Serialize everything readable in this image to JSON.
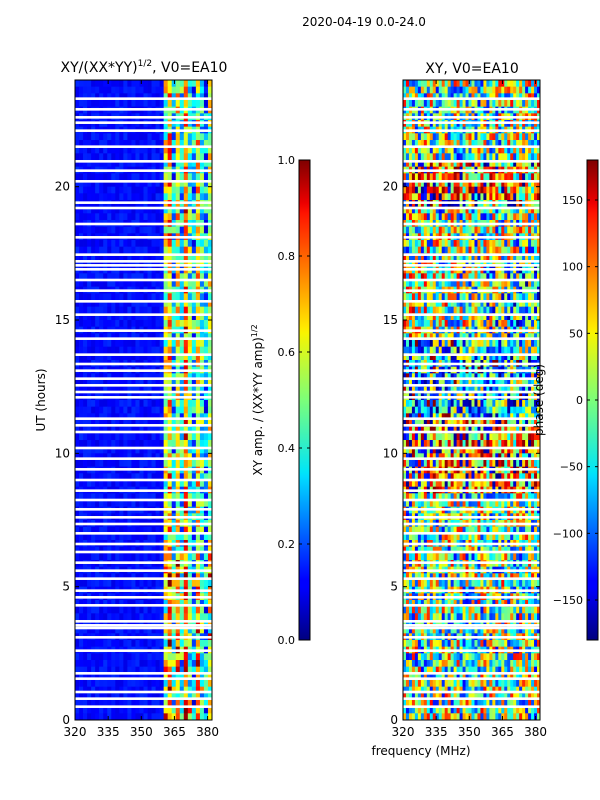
{
  "suptitle": "2020-04-19 0.0-24.0",
  "shared_xlabel": "frequency (MHz)",
  "chart_data": [
    {
      "type": "heatmap",
      "title_main": "XY/(XX*YY)",
      "title_sup": "1/2",
      "title_tail": ", V0=EA10",
      "ylabel": "UT (hours)",
      "xlim": [
        320,
        382
      ],
      "ylim": [
        0,
        24
      ],
      "xticks": [
        320,
        335,
        350,
        365,
        380
      ],
      "yticks": [
        0,
        5,
        10,
        15,
        20
      ],
      "colorbar": {
        "label_main": "XY amp. / (XX*YY amp)",
        "label_sup": "1/2",
        "range": [
          0.0,
          1.0
        ],
        "ticks": [
          "0.0",
          "0.2",
          "0.4",
          "0.6",
          "0.8",
          "1.0"
        ],
        "colormap": "jet"
      },
      "active_band_mhz": [
        360,
        382
      ],
      "flagged_hours": [
        0.5,
        0.8,
        1.05,
        1.55,
        1.75,
        2.6,
        3.1,
        3.45,
        3.55,
        3.7,
        4.3,
        4.6,
        4.85,
        5.3,
        5.6,
        5.9,
        6.3,
        6.6,
        7.0,
        7.35,
        7.6,
        7.9,
        8.25,
        8.6,
        9.0,
        9.4,
        9.8,
        10.2,
        10.8,
        11.05,
        11.3,
        12.1,
        12.3,
        12.55,
        12.8,
        13.1,
        13.35,
        13.7,
        14.3,
        14.6,
        15.2,
        15.7,
        16.1,
        16.5,
        16.9,
        17.05,
        17.2,
        17.45,
        18.1,
        18.6,
        19.2,
        19.4,
        20.2,
        20.6,
        20.95,
        21.5,
        22.1,
        22.4,
        22.6,
        22.9,
        23.3
      ]
    },
    {
      "type": "heatmap",
      "title": "XY, V0=EA10",
      "xlim": [
        320,
        382
      ],
      "ylim": [
        0,
        24
      ],
      "xticks": [
        320,
        335,
        350,
        365,
        380
      ],
      "yticks": [
        0,
        5,
        10,
        15,
        20
      ],
      "colorbar": {
        "label": "phase (deg)",
        "range": [
          -180,
          180
        ],
        "ticks": [
          "−150",
          "−100",
          "−50",
          "0",
          "50",
          "100",
          "150"
        ],
        "colormap": "jet"
      },
      "flagged_hours": [
        0.5,
        0.8,
        1.05,
        1.55,
        1.75,
        2.6,
        3.1,
        3.45,
        3.55,
        3.7,
        4.3,
        4.6,
        4.85,
        5.3,
        5.6,
        5.9,
        6.3,
        6.6,
        7.0,
        7.35,
        7.6,
        7.9,
        8.25,
        8.6,
        9.0,
        9.4,
        9.8,
        10.2,
        10.8,
        11.05,
        11.3,
        12.1,
        12.3,
        12.55,
        12.8,
        13.1,
        13.35,
        13.7,
        14.3,
        14.6,
        15.2,
        15.7,
        16.1,
        16.5,
        16.9,
        17.05,
        17.2,
        17.45,
        18.1,
        18.6,
        19.2,
        19.4,
        20.2,
        20.6,
        20.95,
        21.5,
        22.1,
        22.4,
        22.6,
        22.9,
        23.3
      ]
    }
  ]
}
